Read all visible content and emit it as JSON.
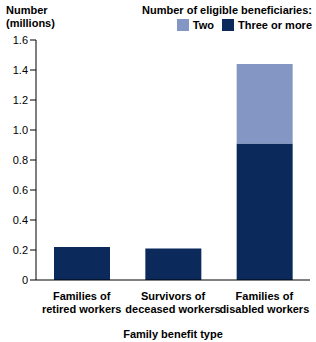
{
  "chart_data": {
    "type": "bar",
    "stacked": true,
    "legend": "top-right",
    "legend_title": "Number of eligible beneficiaries:",
    "y_label": "Number (millions)",
    "x_label": "Family benefit type",
    "categories": [
      "Families of retired workers",
      "Survivors of deceased workers",
      "Families of disabled workers"
    ],
    "series": [
      {
        "name": "Two",
        "color": "#8497c4",
        "values": [
          0,
          0,
          0.53
        ]
      },
      {
        "name": "Three or more",
        "color": "#0b2a5b",
        "values": [
          0.22,
          0.21,
          0.91
        ]
      }
    ],
    "ylim": [
      0,
      1.6
    ],
    "yticks": [
      0,
      0.2,
      0.4,
      0.6,
      0.8,
      {
        "value": 1,
        "label": "1.0"
      },
      1.2,
      1.4,
      1.6
    ],
    "grid": false
  }
}
